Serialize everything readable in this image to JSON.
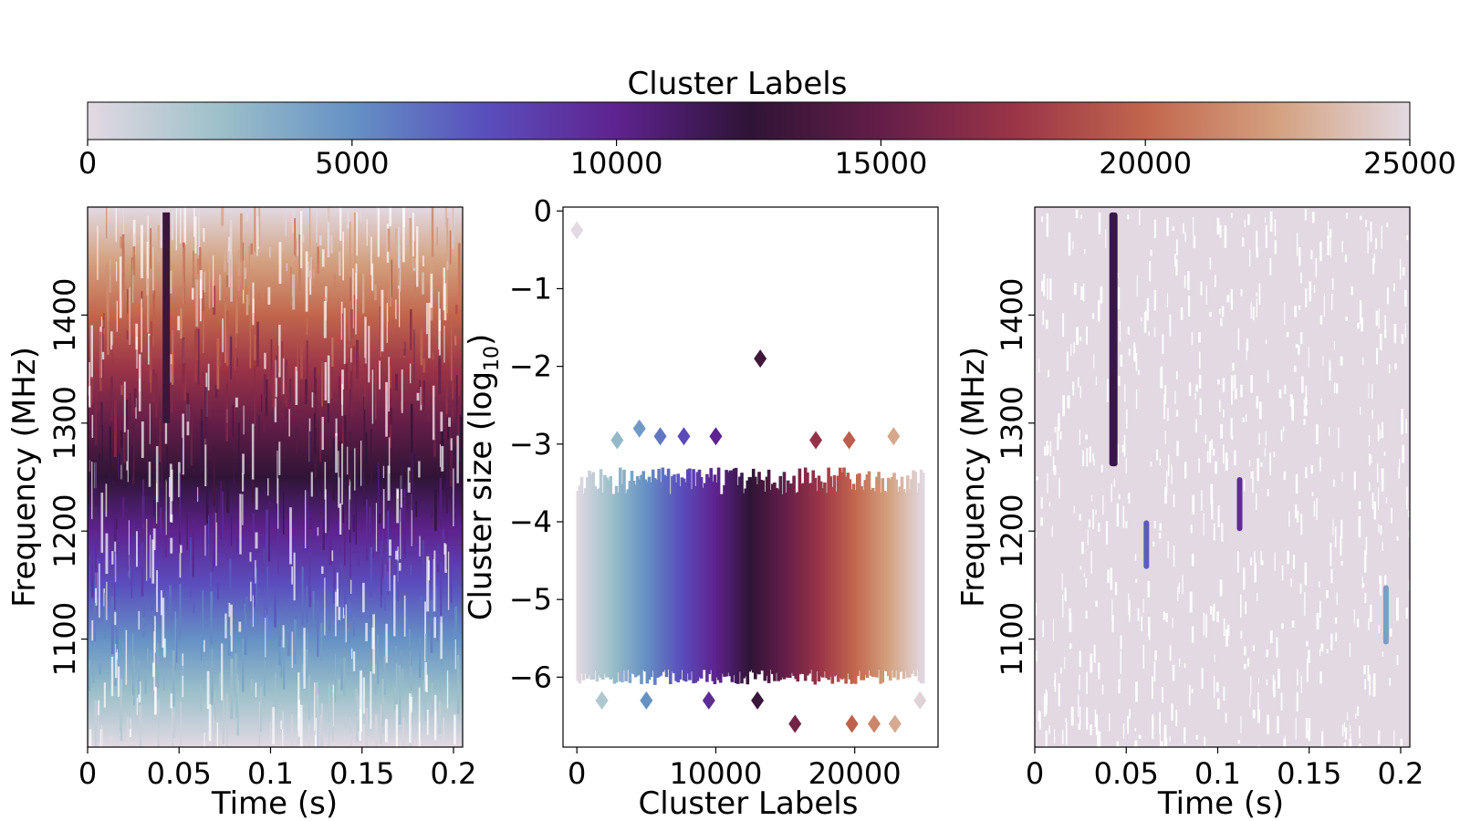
{
  "chart_data": [
    {
      "type": "colorbar",
      "title": "Cluster Labels",
      "colormap": "twilight (lower half)",
      "colormap_stops": [
        "#e2d9e2",
        "#9dc0c9",
        "#6591c4",
        "#5a4fbd",
        "#5e238f",
        "#2f1436",
        "#641e48",
        "#9a3448",
        "#c1664d",
        "#d3a180",
        "#e2d9e2"
      ],
      "range": [
        0,
        25000
      ],
      "ticks": [
        0,
        5000,
        10000,
        15000,
        20000,
        25000
      ],
      "tick_labels": [
        "0",
        "5000",
        "10000",
        "15000",
        "20000",
        "25000"
      ],
      "placement": "top"
    },
    {
      "type": "heatmap",
      "description_panel": "left",
      "xlabel": "Time (s)",
      "ylabel": "Frequency (MHz)",
      "xlim": [
        0,
        0.205
      ],
      "ylim": [
        1000,
        1500
      ],
      "x_ticks": [
        0,
        0.05,
        0.1,
        0.15,
        0.2
      ],
      "x_tick_labels": [
        "0",
        "0.05",
        "0.1",
        "0.15",
        "0.2"
      ],
      "y_ticks": [
        1100,
        1200,
        1300,
        1400
      ],
      "y_tick_labels": [
        "1100",
        "1200",
        "1300",
        "1400"
      ],
      "color_encoding": "cluster label (increases with frequency)",
      "features": [
        {
          "name": "bright burst",
          "time": 0.043,
          "freq_range": [
            1300,
            1495
          ],
          "label": 13000
        }
      ]
    },
    {
      "type": "scatter",
      "marker": "diamond",
      "xlabel": "Cluster Labels",
      "ylabel": "Cluster size (log10)",
      "xlim": [
        -1000,
        26000
      ],
      "ylim": [
        -6.9,
        0.05
      ],
      "x_ticks": [
        0,
        10000,
        20000
      ],
      "x_tick_labels": [
        "0",
        "10000",
        "20000"
      ],
      "y_ticks": [
        0,
        -1,
        -2,
        -3,
        -4,
        -5,
        -6
      ],
      "y_tick_labels": [
        "0",
        "−1",
        "−2",
        "−3",
        "−4",
        "−5",
        "−6"
      ],
      "bulk": {
        "label_range": [
          0,
          25000
        ],
        "log_size_range": [
          -6.1,
          -3.3
        ]
      },
      "outliers": [
        {
          "x": 0,
          "y": -0.25
        },
        {
          "x": 13200,
          "y": -1.9
        },
        {
          "x": 2900,
          "y": -2.95
        },
        {
          "x": 4500,
          "y": -2.8
        },
        {
          "x": 6000,
          "y": -2.9
        },
        {
          "x": 7700,
          "y": -2.9
        },
        {
          "x": 10000,
          "y": -2.9
        },
        {
          "x": 17200,
          "y": -2.95
        },
        {
          "x": 19600,
          "y": -2.95
        },
        {
          "x": 22800,
          "y": -2.9
        },
        {
          "x": 1800,
          "y": -6.3
        },
        {
          "x": 5000,
          "y": -6.3
        },
        {
          "x": 9500,
          "y": -6.3
        },
        {
          "x": 13000,
          "y": -6.3
        },
        {
          "x": 15700,
          "y": -6.6
        },
        {
          "x": 19800,
          "y": -6.6
        },
        {
          "x": 21400,
          "y": -6.6
        },
        {
          "x": 22900,
          "y": -6.6
        },
        {
          "x": 24700,
          "y": -6.3
        }
      ]
    },
    {
      "type": "heatmap",
      "description_panel": "right",
      "xlabel": "Time (s)",
      "ylabel": "Frequency (MHz)",
      "xlim": [
        0,
        0.205
      ],
      "ylim": [
        1000,
        1500
      ],
      "x_ticks": [
        0,
        0.05,
        0.1,
        0.15,
        0.2
      ],
      "x_tick_labels": [
        "0",
        "0.05",
        "0.1",
        "0.15",
        "0.2"
      ],
      "y_ticks": [
        1100,
        1200,
        1300,
        1400
      ],
      "y_tick_labels": [
        "1100",
        "1200",
        "1300",
        "1400"
      ],
      "background_label": 0,
      "highlighted_clusters": [
        {
          "time": 0.043,
          "freq_range": [
            1260,
            1495
          ],
          "label": 12000
        },
        {
          "time": 0.061,
          "freq_range": [
            1165,
            1210
          ],
          "label": 7000
        },
        {
          "time": 0.112,
          "freq_range": [
            1200,
            1250
          ],
          "label": 9500
        },
        {
          "time": 0.192,
          "freq_range": [
            1095,
            1150
          ],
          "label": 4200
        }
      ]
    }
  ]
}
